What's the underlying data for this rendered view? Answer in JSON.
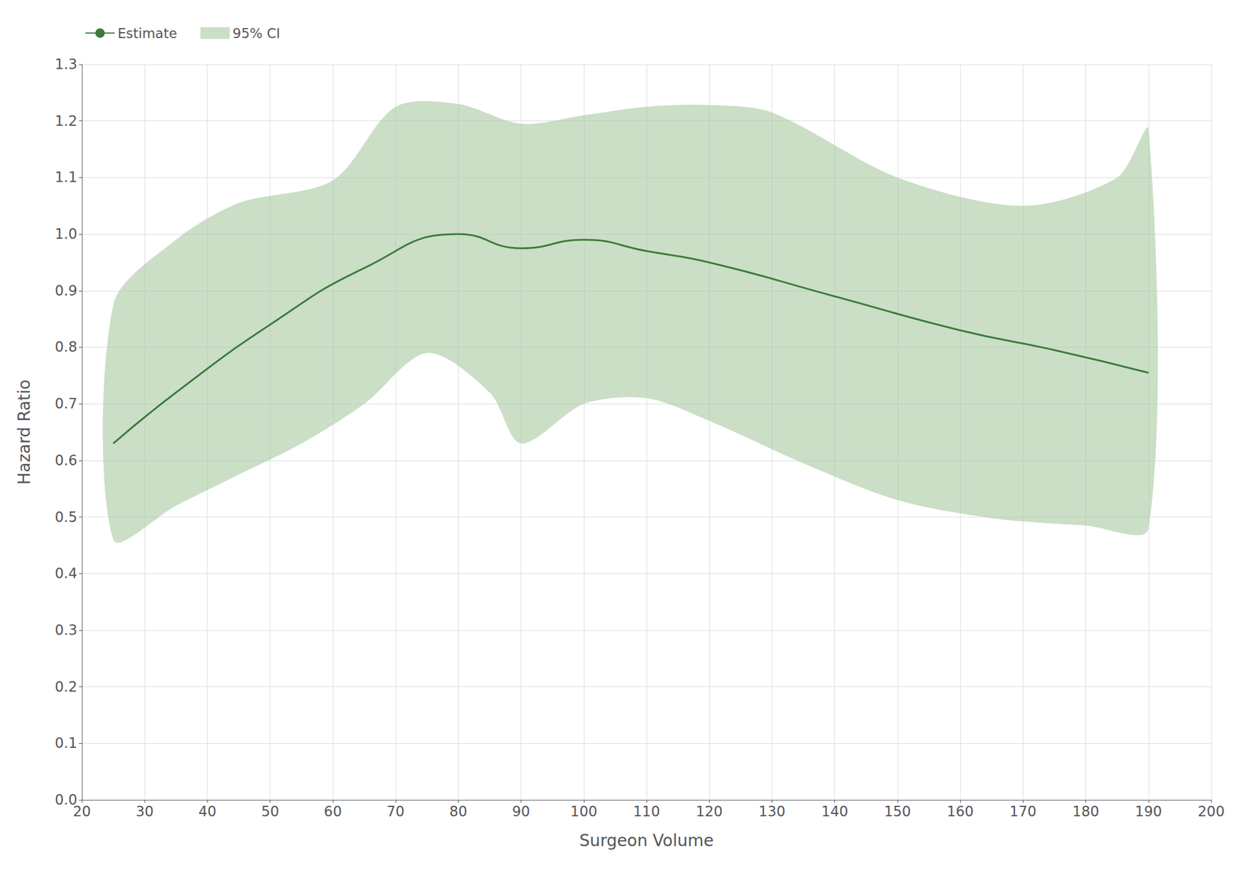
{
  "chart_data": {
    "type": "line",
    "xlabel": "Surgeon Volume",
    "ylabel": "Hazard Ratio",
    "xlim": [
      20,
      200
    ],
    "ylim": [
      0.0,
      1.3
    ],
    "xticks": [
      20,
      30,
      40,
      50,
      60,
      70,
      80,
      90,
      100,
      110,
      120,
      130,
      140,
      150,
      160,
      170,
      180,
      190,
      200
    ],
    "yticks": [
      {
        "value": 0.0,
        "label": "0.0"
      },
      0.1,
      0.2,
      0.3,
      0.4,
      0.5,
      0.6,
      0.7,
      0.8,
      0.9,
      {
        "value": 1.0,
        "label": "1.0"
      },
      1.1,
      1.2,
      1.3
    ],
    "grid": true,
    "legend": "upper left",
    "series": [
      {
        "name": "Estimate",
        "type": "line",
        "color": "#3a7a3a",
        "x": [
          25,
          35,
          50,
          65,
          80,
          90,
          100,
          110,
          120,
          140,
          160,
          175,
          190
        ],
        "values": [
          0.63,
          0.72,
          0.84,
          0.94,
          1.0,
          0.975,
          0.99,
          0.97,
          0.95,
          0.89,
          0.83,
          0.795,
          0.755
        ]
      },
      {
        "name": "95% CI",
        "type": "band",
        "color": "#a8c8a0",
        "upper": {
          "x": [
            25,
            35,
            45,
            60,
            70,
            80,
            90,
            100,
            110,
            120,
            130,
            150,
            170,
            185,
            190
          ],
          "values": [
            0.875,
            0.99,
            1.055,
            1.095,
            1.225,
            1.23,
            1.195,
            1.21,
            1.225,
            1.228,
            1.215,
            1.1,
            1.05,
            1.1,
            1.185
          ]
        },
        "lower": {
          "x": [
            25,
            35,
            45,
            55,
            65,
            75,
            85,
            90,
            100,
            110,
            120,
            135,
            150,
            165,
            180,
            190
          ],
          "values": [
            0.46,
            0.52,
            0.575,
            0.63,
            0.7,
            0.79,
            0.72,
            0.63,
            0.7,
            0.71,
            0.67,
            0.595,
            0.53,
            0.498,
            0.485,
            0.48
          ]
        }
      }
    ]
  }
}
